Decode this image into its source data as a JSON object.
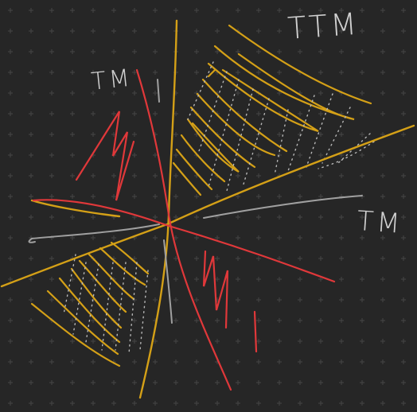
{
  "labels": {
    "ttm": "TTM",
    "tm_left": "TM",
    "tm_right": "TM"
  },
  "colors": {
    "background": "#262626",
    "grid_dot": "#4a4a4a",
    "gold": "#d4a017",
    "red": "#e0383a",
    "gray": "#a0a0a0",
    "dotted": "#b8b8b8",
    "label": "#d0d0d0"
  }
}
